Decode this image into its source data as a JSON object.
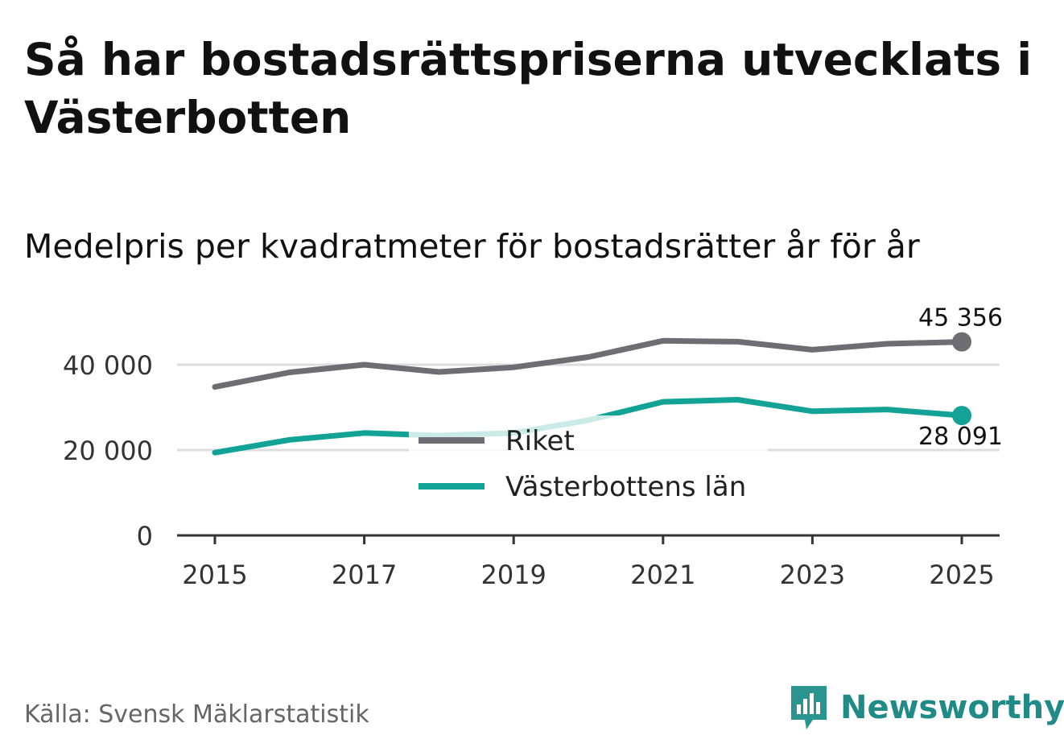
{
  "header": {
    "title": "Så har bostadsrättspriserna utvecklats i Västerbotten",
    "subtitle": "Medelpris per kvadratmeter för bostadsrätter år för år"
  },
  "footer": {
    "source": "Källa: Svensk Mäklarstatistik",
    "brand": "Newsworthy"
  },
  "colors": {
    "riket": "#6e6d73",
    "lan": "#13a396",
    "grid": "#dddddd",
    "axis": "#333333",
    "brand": "#1f8a86"
  },
  "chart_data": {
    "type": "line",
    "title": "Medelpris per kvadratmeter för bostadsrätter år för år",
    "xlabel": "",
    "ylabel": "",
    "x": [
      2015,
      2016,
      2017,
      2018,
      2019,
      2020,
      2021,
      2022,
      2023,
      2024,
      2025
    ],
    "xticks": [
      "2015",
      "2017",
      "2019",
      "2021",
      "2023",
      "2025"
    ],
    "xlim": [
      2015,
      2025
    ],
    "yticks": [
      0,
      20000,
      40000
    ],
    "ytick_labels": [
      "0",
      "20 000",
      "40 000"
    ],
    "ylim": [
      0,
      45356
    ],
    "grid": true,
    "legend_position": "center",
    "series": [
      {
        "name": "Riket",
        "color": "#6e6d73",
        "values": [
          34800,
          38200,
          40000,
          38300,
          39400,
          41800,
          45600,
          45400,
          43500,
          44900,
          45356
        ],
        "end_label": "45 356"
      },
      {
        "name": "Västerbottens län",
        "color": "#13a396",
        "values": [
          19400,
          22400,
          24000,
          23400,
          24000,
          27000,
          31300,
          31800,
          29100,
          29500,
          28091
        ],
        "end_label": "28 091"
      }
    ]
  }
}
